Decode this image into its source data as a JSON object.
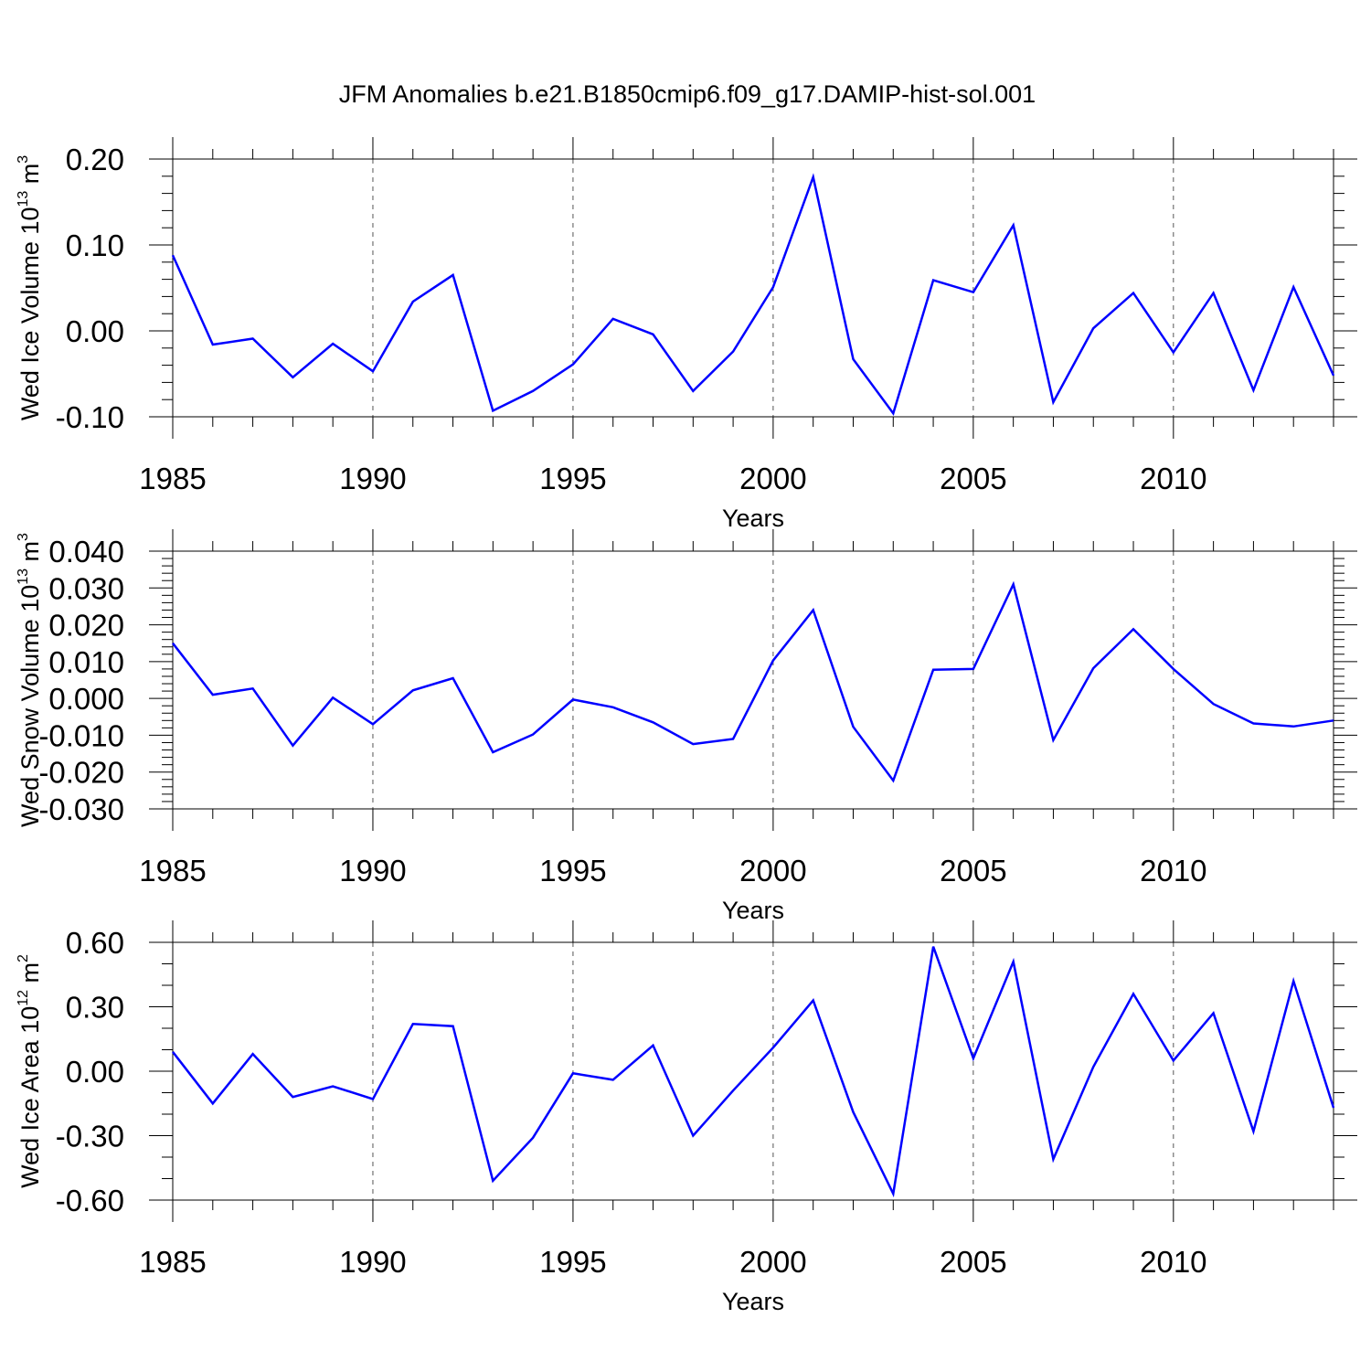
{
  "title": "JFM Anomalies b.e21.B1850cmip6.f09_g17.DAMIP-hist-sol.001",
  "colors": {
    "line": "#0000ff",
    "axis": "#000000",
    "grid": "#555555",
    "background": "#ffffff"
  },
  "chart_data": [
    {
      "type": "line",
      "ylabel": {
        "text": "Wed Ice Volume 10",
        "sup1": "13",
        "mid": " m",
        "sup2": "3"
      },
      "xlabel": "Years",
      "xlim": [
        1985,
        2014
      ],
      "ylim": [
        -0.1,
        0.2
      ],
      "yticks": [
        -0.1,
        0.0,
        0.1,
        0.2
      ],
      "ytick_labels": [
        "-0.10",
        "0.00",
        "0.10",
        "0.20"
      ],
      "yminor_step": 0.02,
      "xticks": [
        1985,
        1990,
        1995,
        2000,
        2005,
        2010
      ],
      "xtick_labels": [
        "1985",
        "1990",
        "1995",
        "2000",
        "2005",
        "2010"
      ],
      "grid_x": [
        1990,
        1995,
        2000,
        2005,
        2010
      ],
      "x": [
        1985,
        1986,
        1987,
        1988,
        1989,
        1990,
        1991,
        1992,
        1993,
        1994,
        1995,
        1996,
        1997,
        1998,
        1999,
        2000,
        2001,
        2002,
        2003,
        2004,
        2005,
        2006,
        2007,
        2008,
        2009,
        2010,
        2011,
        2012,
        2013,
        2014
      ],
      "values": [
        0.088,
        -0.016,
        -0.009,
        -0.054,
        -0.015,
        -0.047,
        0.034,
        0.065,
        -0.093,
        -0.07,
        -0.039,
        0.014,
        -0.004,
        -0.07,
        -0.024,
        0.051,
        0.179,
        -0.033,
        -0.096,
        0.059,
        0.045,
        0.123,
        -0.083,
        0.003,
        0.044,
        -0.025,
        0.044,
        -0.069,
        0.051,
        -0.052
      ]
    },
    {
      "type": "line",
      "ylabel": {
        "text": "Wed Snow Volume 10",
        "sup1": "13",
        "mid": " m",
        "sup2": "3"
      },
      "xlabel": "Years",
      "xlim": [
        1985,
        2014
      ],
      "ylim": [
        -0.03,
        0.04
      ],
      "yticks": [
        -0.03,
        -0.02,
        -0.01,
        0.0,
        0.01,
        0.02,
        0.03,
        0.04
      ],
      "ytick_labels": [
        "-0.030",
        "-0.020",
        "-0.010",
        "0.000",
        "0.010",
        "0.020",
        "0.030",
        "0.040"
      ],
      "yminor_step": 0.002,
      "xticks": [
        1985,
        1990,
        1995,
        2000,
        2005,
        2010
      ],
      "xtick_labels": [
        "1985",
        "1990",
        "1995",
        "2000",
        "2005",
        "2010"
      ],
      "grid_x": [
        1990,
        1995,
        2000,
        2005,
        2010
      ],
      "x": [
        1985,
        1986,
        1987,
        1988,
        1989,
        1990,
        1991,
        1992,
        1993,
        1994,
        1995,
        1996,
        1997,
        1998,
        1999,
        2000,
        2001,
        2002,
        2003,
        2004,
        2005,
        2006,
        2007,
        2008,
        2009,
        2010,
        2011,
        2012,
        2013,
        2014
      ],
      "values": [
        0.015,
        0.001,
        0.0027,
        -0.0128,
        0.0002,
        -0.007,
        0.0022,
        0.0055,
        -0.0146,
        -0.0098,
        -0.0003,
        -0.0024,
        -0.0065,
        -0.0124,
        -0.011,
        0.0103,
        0.024,
        -0.0077,
        -0.0223,
        0.0078,
        0.008,
        0.031,
        -0.0113,
        0.0082,
        0.0188,
        0.008,
        -0.0015,
        -0.0068,
        -0.0076,
        -0.006
      ]
    },
    {
      "type": "line",
      "ylabel": {
        "text": "Wed Ice Area 10",
        "sup1": "12",
        "mid": " m",
        "sup2": "2"
      },
      "xlabel": "Years",
      "xlim": [
        1985,
        2014
      ],
      "ylim": [
        -0.6,
        0.6
      ],
      "yticks": [
        -0.6,
        -0.3,
        0.0,
        0.3,
        0.6
      ],
      "ytick_labels": [
        "-0.60",
        "-0.30",
        "0.00",
        "0.30",
        "0.60"
      ],
      "yminor_step": 0.1,
      "xticks": [
        1985,
        1990,
        1995,
        2000,
        2005,
        2010
      ],
      "xtick_labels": [
        "1985",
        "1990",
        "1995",
        "2000",
        "2005",
        "2010"
      ],
      "grid_x": [
        1990,
        1995,
        2000,
        2005,
        2010
      ],
      "x": [
        1985,
        1986,
        1987,
        1988,
        1989,
        1990,
        1991,
        1992,
        1993,
        1994,
        1995,
        1996,
        1997,
        1998,
        1999,
        2000,
        2001,
        2002,
        2003,
        2004,
        2005,
        2006,
        2007,
        2008,
        2009,
        2010,
        2011,
        2012,
        2013,
        2014
      ],
      "values": [
        0.09,
        -0.15,
        0.08,
        -0.12,
        -0.07,
        -0.13,
        0.22,
        0.21,
        -0.51,
        -0.31,
        -0.01,
        -0.04,
        0.12,
        -0.3,
        -0.09,
        0.11,
        0.33,
        -0.19,
        -0.57,
        0.58,
        0.06,
        0.51,
        -0.41,
        0.02,
        0.36,
        0.05,
        0.27,
        -0.28,
        0.42,
        -0.17
      ]
    }
  ]
}
